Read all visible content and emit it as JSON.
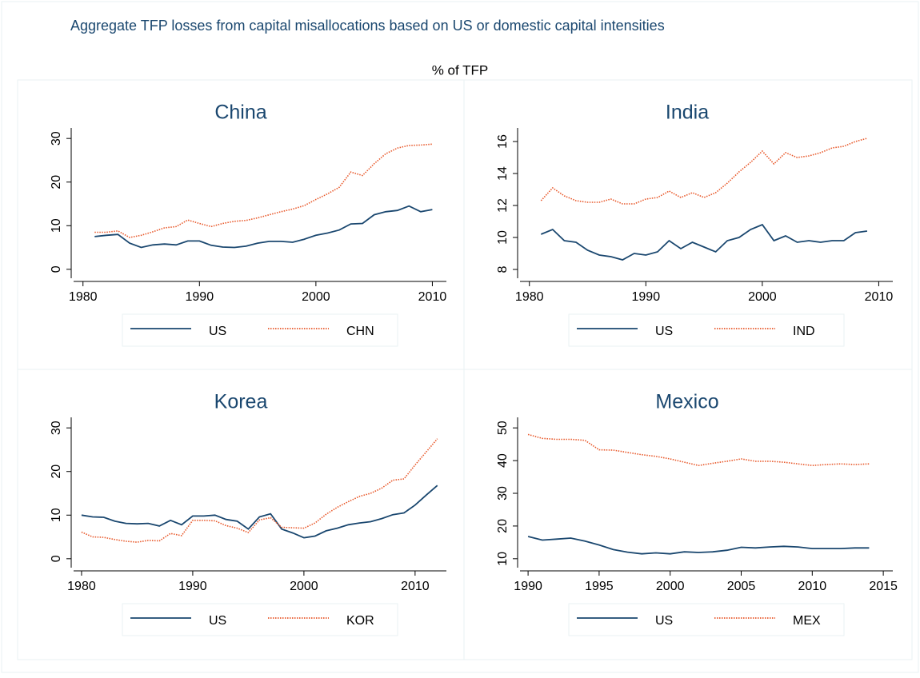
{
  "title": "Aggregate TFP losses from capital misallocations based on US or domestic capital intensities",
  "subtitle": "% of TFP",
  "chart_data": [
    {
      "type": "line",
      "title": "China",
      "legend": "bottom",
      "x": [
        1981,
        1982,
        1983,
        1984,
        1985,
        1986,
        1987,
        1988,
        1989,
        1990,
        1991,
        1992,
        1993,
        1994,
        1995,
        1996,
        1997,
        1998,
        1999,
        2000,
        2001,
        2002,
        2003,
        2004,
        2005,
        2006,
        2007,
        2008,
        2009,
        2010
      ],
      "xlim": [
        1979.4,
        2011
      ],
      "xticks": [
        1980,
        1990,
        2000,
        2010
      ],
      "ylim": [
        -1.5,
        31.5
      ],
      "yticks": [
        0,
        10,
        20,
        30
      ],
      "series": [
        {
          "name": "US",
          "color": "#1a476f",
          "values": [
            7.5,
            7.8,
            8.0,
            6.0,
            5.0,
            5.6,
            5.8,
            5.6,
            6.5,
            6.5,
            5.5,
            5.1,
            5.0,
            5.3,
            6.0,
            6.4,
            6.4,
            6.2,
            6.9,
            7.8,
            8.3,
            9.0,
            10.4,
            10.5,
            12.5,
            13.2,
            13.5,
            14.5,
            13.2,
            13.7
          ]
        },
        {
          "name": "CHN",
          "color": "#e8582a",
          "values": [
            8.5,
            8.5,
            8.8,
            7.3,
            7.8,
            8.6,
            9.5,
            9.8,
            11.3,
            10.5,
            9.8,
            10.5,
            11.0,
            11.2,
            11.8,
            12.5,
            13.2,
            13.8,
            14.6,
            16.0,
            17.3,
            18.8,
            22.3,
            21.5,
            24.2,
            26.5,
            27.8,
            28.4,
            28.5,
            28.7
          ]
        }
      ]
    },
    {
      "type": "line",
      "title": "India",
      "legend": "bottom",
      "x": [
        1981,
        1982,
        1983,
        1984,
        1985,
        1986,
        1987,
        1988,
        1989,
        1990,
        1991,
        1992,
        1993,
        1994,
        1995,
        1996,
        1997,
        1998,
        1999,
        2000,
        2001,
        2002,
        2003,
        2004,
        2005,
        2006,
        2007,
        2008,
        2009
      ],
      "xlim": [
        1979.4,
        2011
      ],
      "xticks": [
        1980,
        1990,
        2000,
        2010
      ],
      "ylim": [
        7.6,
        16.6
      ],
      "yticks": [
        8,
        10,
        12,
        14,
        16
      ],
      "series": [
        {
          "name": "US",
          "color": "#1a476f",
          "values": [
            10.2,
            10.5,
            9.8,
            9.7,
            9.2,
            8.9,
            8.8,
            8.6,
            9.0,
            8.9,
            9.1,
            9.8,
            9.3,
            9.7,
            9.4,
            9.1,
            9.8,
            10.0,
            10.5,
            10.8,
            9.8,
            10.1,
            9.7,
            9.8,
            9.7,
            9.8,
            9.8,
            10.3,
            10.4
          ]
        },
        {
          "name": "IND",
          "color": "#e8582a",
          "values": [
            12.3,
            13.1,
            12.6,
            12.3,
            12.2,
            12.2,
            12.4,
            12.1,
            12.1,
            12.4,
            12.5,
            12.9,
            12.5,
            12.8,
            12.5,
            12.8,
            13.4,
            14.1,
            14.7,
            15.4,
            14.6,
            15.3,
            15.0,
            15.1,
            15.3,
            15.6,
            15.7,
            16.0,
            16.2
          ]
        }
      ]
    },
    {
      "type": "line",
      "title": "Korea",
      "legend": "bottom",
      "x": [
        1980,
        1981,
        1982,
        1983,
        1984,
        1985,
        1986,
        1987,
        1988,
        1989,
        1990,
        1991,
        1992,
        1993,
        1994,
        1995,
        1996,
        1997,
        1998,
        1999,
        2000,
        2001,
        2002,
        2003,
        2004,
        2005,
        2006,
        2007,
        2008,
        2009,
        2010,
        2011,
        2012
      ],
      "xlim": [
        1979.5,
        2012.6
      ],
      "xticks": [
        1980,
        1990,
        2000,
        2010
      ],
      "ylim": [
        -1.5,
        31.5
      ],
      "yticks": [
        0,
        10,
        20,
        30
      ],
      "series": [
        {
          "name": "US",
          "color": "#1a476f",
          "values": [
            10.0,
            9.6,
            9.5,
            8.6,
            8.1,
            8.0,
            8.1,
            7.5,
            8.8,
            7.8,
            9.8,
            9.8,
            10.0,
            9.0,
            8.6,
            6.8,
            9.6,
            10.3,
            6.8,
            5.9,
            4.8,
            5.2,
            6.4,
            7.0,
            7.8,
            8.2,
            8.5,
            9.2,
            10.1,
            10.5,
            12.3,
            14.6,
            16.8
          ]
        },
        {
          "name": "KOR",
          "color": "#e8582a",
          "values": [
            6.1,
            5.0,
            4.9,
            4.4,
            4.0,
            3.8,
            4.2,
            4.1,
            5.8,
            5.3,
            8.8,
            8.8,
            8.7,
            7.6,
            7.0,
            6.0,
            8.9,
            9.4,
            7.2,
            7.1,
            7.0,
            8.2,
            10.2,
            11.8,
            13.1,
            14.3,
            15.0,
            16.2,
            18.0,
            18.3,
            21.5,
            24.5,
            27.5
          ]
        }
      ]
    },
    {
      "type": "line",
      "title": "Mexico",
      "legend": "bottom",
      "x": [
        1990,
        1991,
        1992,
        1993,
        1994,
        1995,
        1996,
        1997,
        1998,
        1999,
        2000,
        2001,
        2002,
        2003,
        2004,
        2005,
        2006,
        2007,
        2008,
        2009,
        2010,
        2011,
        2012,
        2013,
        2014
      ],
      "xlim": [
        1989.6,
        2015.5
      ],
      "xticks": [
        1990,
        1995,
        2000,
        2005,
        2010,
        2015
      ],
      "ylim": [
        8,
        52
      ],
      "yticks": [
        10,
        20,
        30,
        40,
        50
      ],
      "series": [
        {
          "name": "US",
          "color": "#1a476f",
          "values": [
            16.8,
            15.7,
            16.0,
            16.3,
            15.4,
            14.2,
            12.8,
            12.0,
            11.5,
            11.8,
            11.5,
            12.1,
            11.9,
            12.1,
            12.6,
            13.5,
            13.3,
            13.6,
            13.8,
            13.6,
            13.1,
            13.1,
            13.1,
            13.3,
            13.3
          ]
        },
        {
          "name": "MEX",
          "color": "#e8582a",
          "values": [
            48.0,
            46.8,
            46.5,
            46.5,
            46.2,
            43.3,
            43.2,
            42.5,
            41.8,
            41.3,
            40.5,
            39.5,
            38.5,
            39.2,
            39.8,
            40.5,
            39.8,
            39.8,
            39.5,
            39.0,
            38.5,
            38.8,
            39.0,
            38.8,
            39.0
          ]
        }
      ]
    }
  ]
}
